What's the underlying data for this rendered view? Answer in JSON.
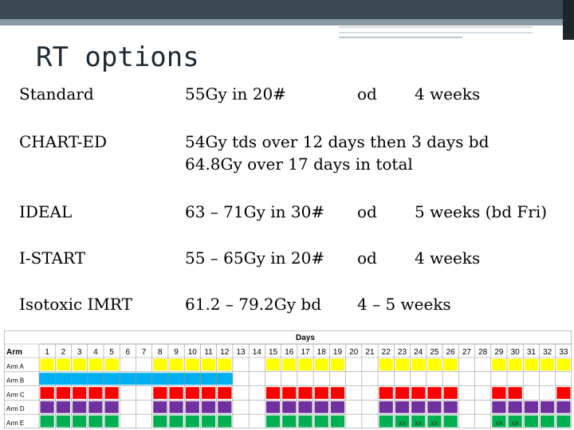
{
  "slide": {
    "title": "RT options"
  },
  "rows": [
    {
      "name": "Standard",
      "dose": "55Gy in 20#",
      "freq": "od",
      "duration": "4 weeks"
    },
    {
      "name": "CHART-ED",
      "dose": "54Gy tds over 12 days then 3 days bd",
      "dose_line2": "64.8Gy over 17 days in total"
    },
    {
      "name": "IDEAL",
      "dose": "63 – 71Gy in 30#",
      "freq": "od",
      "duration": "5 weeks (bd Fri)"
    },
    {
      "name": "I-START",
      "dose": "55 – 65Gy in 20#",
      "freq": "od",
      "duration": "4 weeks"
    },
    {
      "name": "Isotoxic IMRT",
      "dose": "61.2 – 79.2Gy  bd",
      "duration": "4 – 5 weeks"
    }
  ],
  "schedule": {
    "days_label": "Days",
    "arm_header": "Arm",
    "days": [
      "1",
      "2",
      "3",
      "4",
      "5",
      "6",
      "7",
      "8",
      "9",
      "10",
      "11",
      "12",
      "13",
      "14",
      "15",
      "16",
      "17",
      "18",
      "19",
      "20",
      "21",
      "22",
      "23",
      "24",
      "25",
      "26",
      "27",
      "28",
      "29",
      "30",
      "31",
      "32",
      "33"
    ],
    "arms": [
      {
        "label": "Arm A",
        "color": "#ffff00",
        "days": [
          1,
          2,
          3,
          4,
          5,
          8,
          9,
          10,
          11,
          12,
          15,
          16,
          17,
          18,
          19,
          22,
          23,
          24,
          25,
          26,
          29,
          30,
          31,
          32,
          33
        ]
      },
      {
        "label": "Arm B",
        "color": "#00b0f0",
        "days": [
          1,
          2,
          3,
          4,
          5,
          6,
          7,
          8,
          9,
          10,
          11,
          12
        ]
      },
      {
        "label": "Arm C",
        "color": "#ff0000",
        "days": [
          1,
          2,
          3,
          4,
          5,
          8,
          9,
          10,
          11,
          12,
          15,
          16,
          17,
          18,
          19,
          22,
          23,
          24,
          25,
          26,
          29,
          30,
          33
        ]
      },
      {
        "label": "Arm D",
        "color": "#7030a0",
        "days": [
          1,
          2,
          3,
          4,
          5,
          8,
          9,
          10,
          11,
          12,
          15,
          16,
          17,
          18,
          19,
          22,
          23,
          24,
          25,
          26,
          29,
          30,
          31,
          32,
          33
        ]
      },
      {
        "label": "Arm E",
        "color": "#00b050",
        "days": [
          1,
          2,
          3,
          4,
          5,
          8,
          9,
          10,
          11,
          12,
          15,
          16,
          17,
          18,
          19,
          22,
          23,
          24,
          25,
          26,
          29,
          30,
          31,
          32,
          33
        ]
      }
    ],
    "x_mark": "XX",
    "x_days": [
      23,
      24,
      25,
      29,
      30
    ]
  }
}
